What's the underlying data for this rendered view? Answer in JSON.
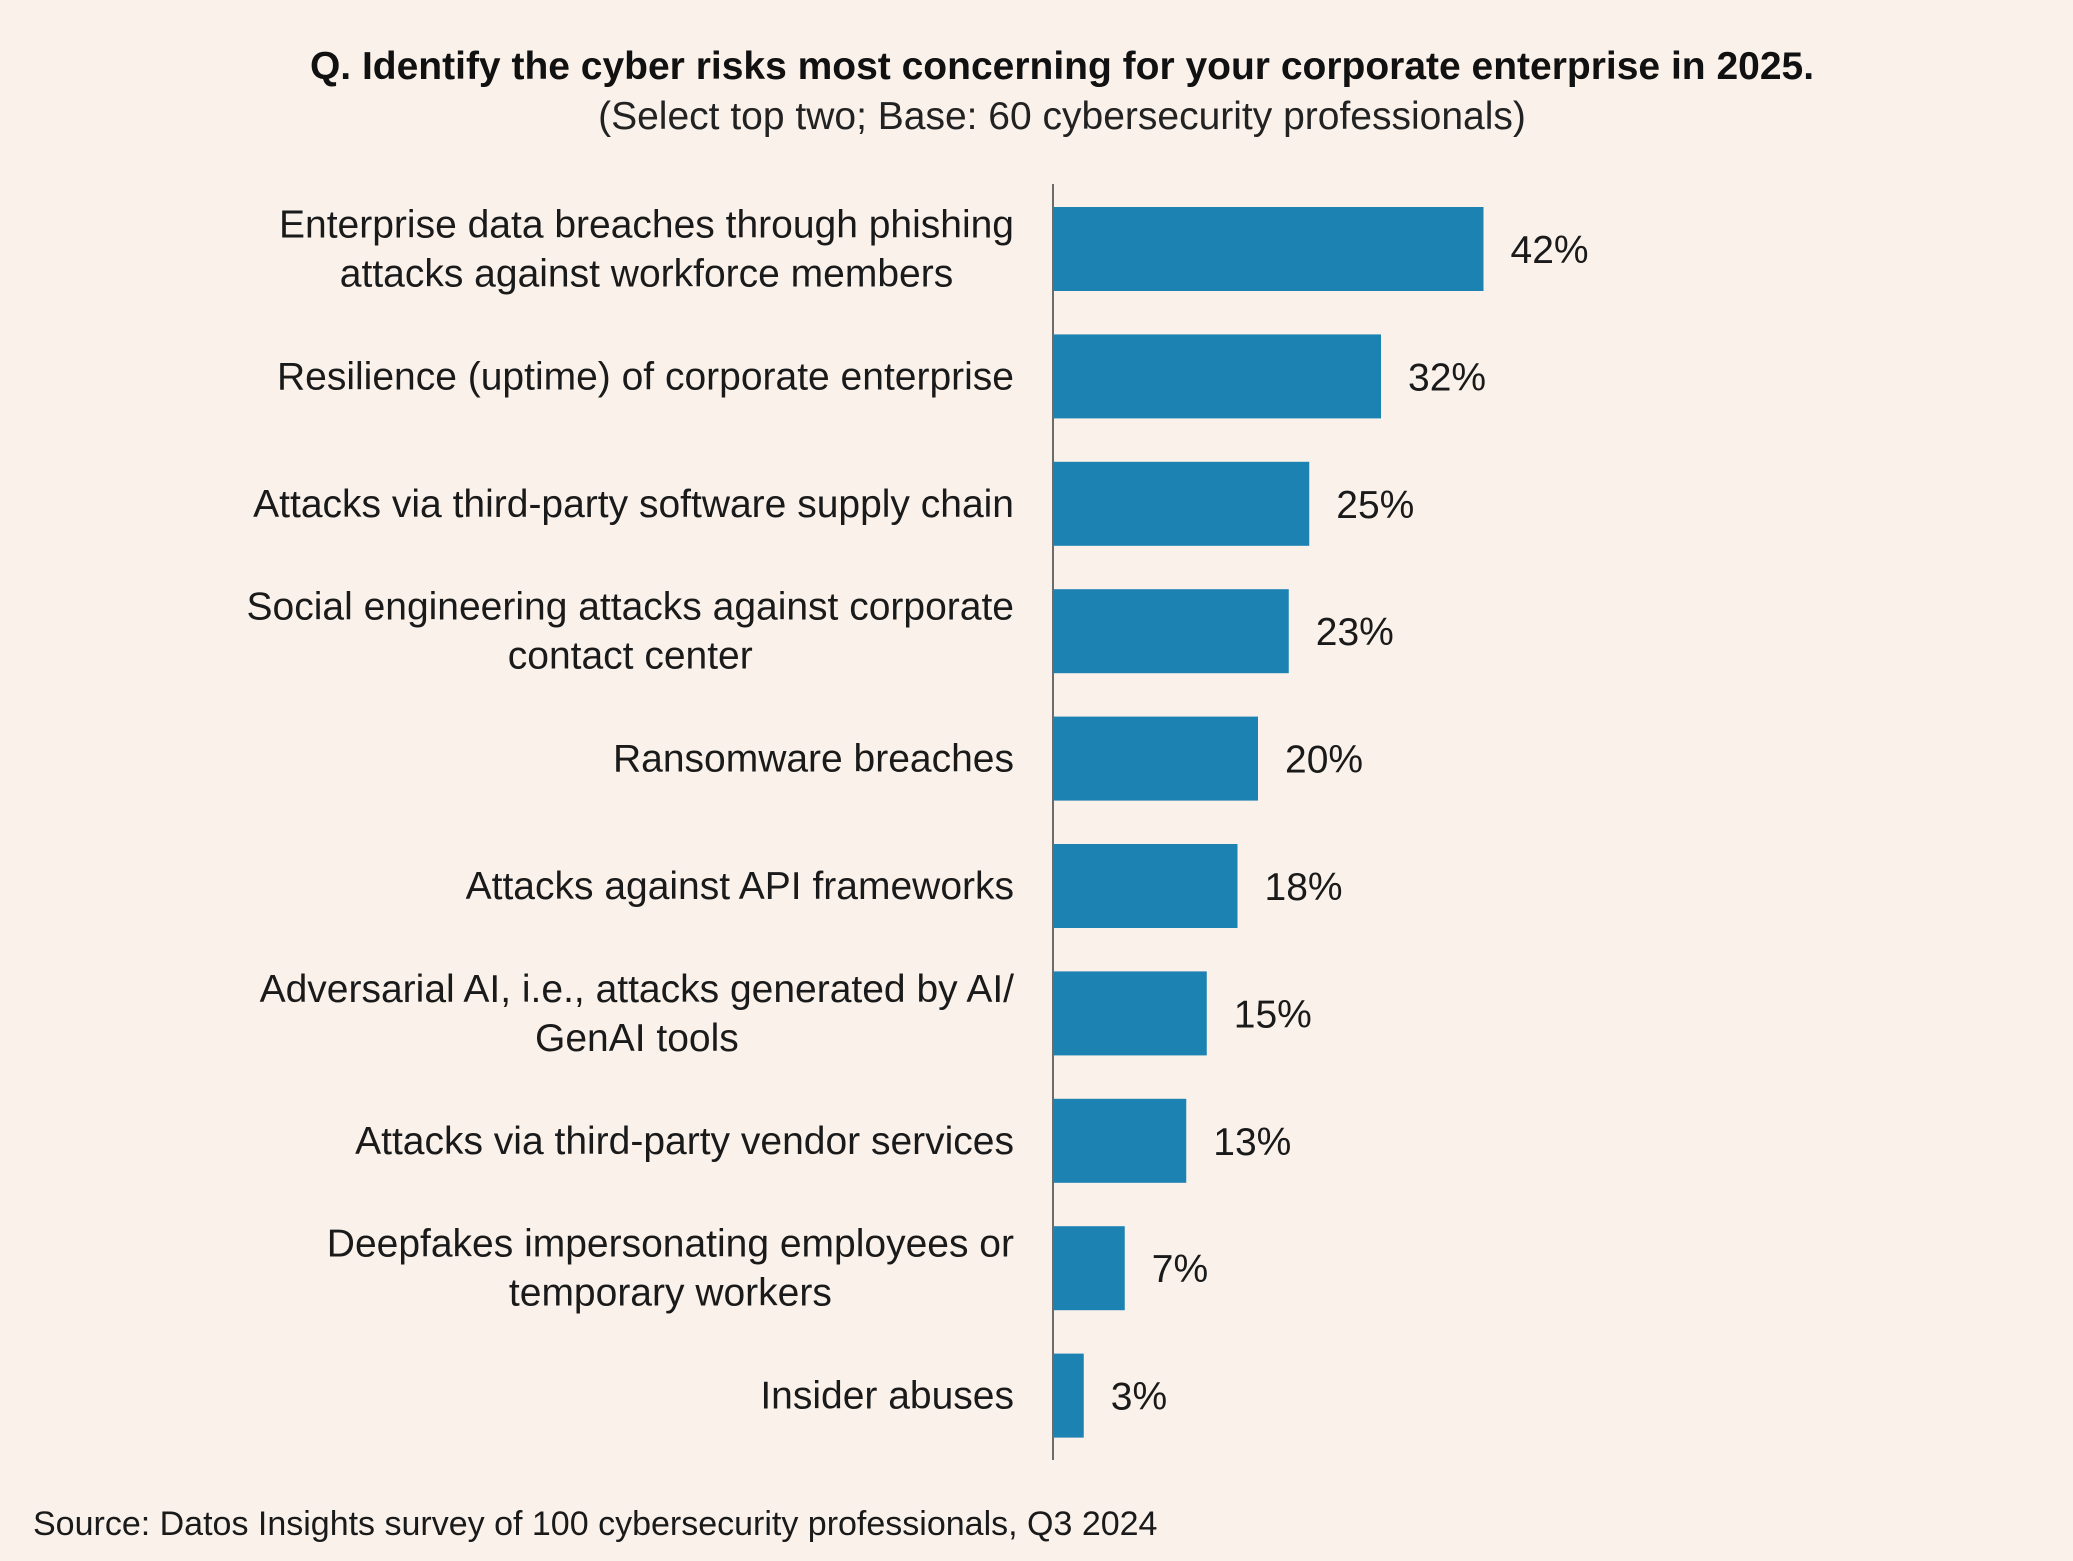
{
  "chart_data": {
    "type": "bar",
    "orientation": "horizontal",
    "title": "Q. Identify the cyber risks most concerning for your corporate enterprise in 2025.",
    "subtitle": "(Select top two; Base: 60 cybersecurity professionals)",
    "categories": [
      [
        "Enterprise data breaches through phishing",
        "attacks against workforce members"
      ],
      [
        "Resilience (uptime) of corporate enterprise"
      ],
      [
        "Attacks via third-party software supply chain"
      ],
      [
        "Social engineering attacks against corporate",
        "contact center"
      ],
      [
        "Ransomware breaches"
      ],
      [
        "Attacks against API frameworks"
      ],
      [
        "Adversarial AI, i.e., attacks generated by AI/",
        "GenAI tools"
      ],
      [
        "Attacks via third-party vendor services"
      ],
      [
        "Deepfakes impersonating employees or",
        "temporary workers"
      ],
      [
        "Insider abuses"
      ]
    ],
    "values": [
      42,
      32,
      25,
      23,
      20,
      18,
      15,
      13,
      7,
      3
    ],
    "value_labels": [
      "42%",
      "32%",
      "25%",
      "23%",
      "20%",
      "18%",
      "15%",
      "13%",
      "7%",
      "3%"
    ],
    "bar_color": "#1b82b1",
    "axis_color": "#6b6b6b",
    "grid": false,
    "legend": "none",
    "source": "Source: Datos Insights survey of 100 cybersecurity professionals, Q3 2024"
  }
}
